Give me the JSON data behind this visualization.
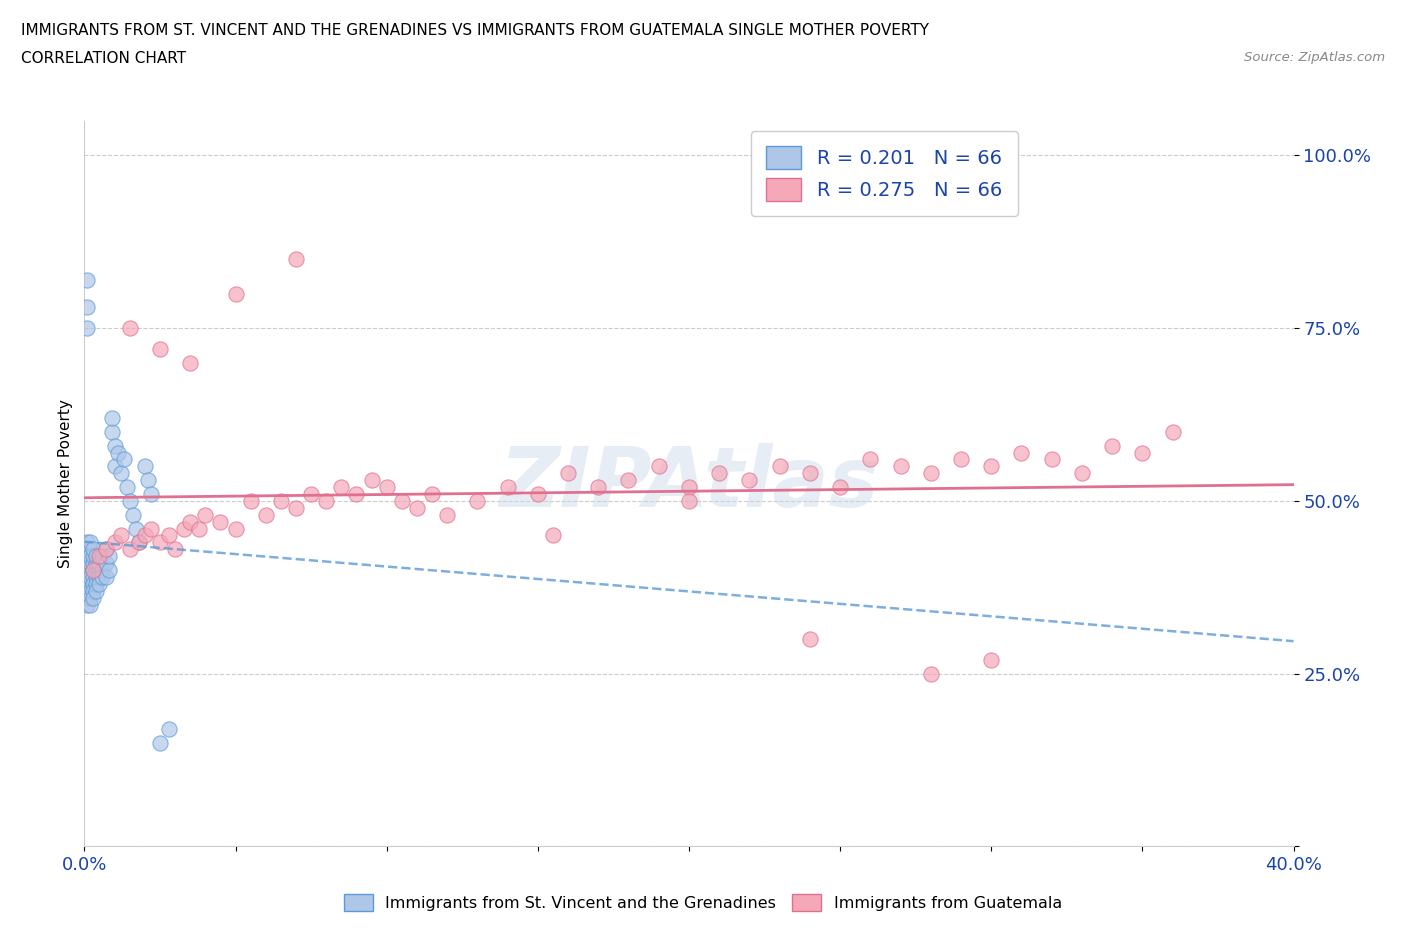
{
  "title_line1": "IMMIGRANTS FROM ST. VINCENT AND THE GRENADINES VS IMMIGRANTS FROM GUATEMALA SINGLE MOTHER POVERTY",
  "title_line2": "CORRELATION CHART",
  "source": "Source: ZipAtlas.com",
  "ylabel": "Single Mother Poverty",
  "xlim": [
    0.0,
    0.4
  ],
  "ylim": [
    0.0,
    1.05
  ],
  "xtick_positions": [
    0.0,
    0.05,
    0.1,
    0.15,
    0.2,
    0.25,
    0.3,
    0.35,
    0.4
  ],
  "xtick_labels": [
    "0.0%",
    "",
    "",
    "",
    "",
    "",
    "",
    "",
    "40.0%"
  ],
  "ytick_positions": [
    0.0,
    0.25,
    0.5,
    0.75,
    1.0
  ],
  "ytick_labels": [
    "",
    "25.0%",
    "50.0%",
    "75.0%",
    "100.0%"
  ],
  "R_blue": 0.201,
  "N_blue": 66,
  "R_pink": 0.275,
  "N_pink": 66,
  "blue_color": "#aec6e8",
  "pink_color": "#f4a8b8",
  "blue_edge": "#5b9bd5",
  "pink_edge": "#e07090",
  "trend_blue_color": "#5b9bd5",
  "trend_pink_color": "#e07090",
  "watermark": "ZIPAtlas",
  "blue_scatter_x": [
    0.001,
    0.001,
    0.001,
    0.001,
    0.001,
    0.001,
    0.001,
    0.001,
    0.001,
    0.001,
    0.002,
    0.002,
    0.002,
    0.002,
    0.002,
    0.002,
    0.002,
    0.002,
    0.002,
    0.002,
    0.003,
    0.003,
    0.003,
    0.003,
    0.003,
    0.003,
    0.003,
    0.003,
    0.004,
    0.004,
    0.004,
    0.004,
    0.004,
    0.004,
    0.005,
    0.005,
    0.005,
    0.005,
    0.006,
    0.006,
    0.006,
    0.007,
    0.007,
    0.007,
    0.008,
    0.008,
    0.009,
    0.009,
    0.01,
    0.01,
    0.011,
    0.012,
    0.013,
    0.014,
    0.015,
    0.016,
    0.017,
    0.018,
    0.02,
    0.021,
    0.022,
    0.025,
    0.028,
    0.001,
    0.001,
    0.001
  ],
  "blue_scatter_y": [
    0.4,
    0.41,
    0.42,
    0.39,
    0.38,
    0.43,
    0.37,
    0.36,
    0.35,
    0.44,
    0.4,
    0.41,
    0.38,
    0.39,
    0.37,
    0.36,
    0.43,
    0.42,
    0.35,
    0.44,
    0.4,
    0.39,
    0.41,
    0.38,
    0.37,
    0.42,
    0.36,
    0.43,
    0.4,
    0.39,
    0.41,
    0.38,
    0.42,
    0.37,
    0.4,
    0.39,
    0.41,
    0.38,
    0.4,
    0.39,
    0.42,
    0.41,
    0.39,
    0.43,
    0.4,
    0.42,
    0.6,
    0.62,
    0.58,
    0.55,
    0.57,
    0.54,
    0.56,
    0.52,
    0.5,
    0.48,
    0.46,
    0.44,
    0.55,
    0.53,
    0.51,
    0.15,
    0.17,
    0.78,
    0.82,
    0.75
  ],
  "pink_scatter_x": [
    0.003,
    0.005,
    0.007,
    0.01,
    0.012,
    0.015,
    0.018,
    0.02,
    0.022,
    0.025,
    0.028,
    0.03,
    0.033,
    0.035,
    0.038,
    0.04,
    0.045,
    0.05,
    0.055,
    0.06,
    0.065,
    0.07,
    0.075,
    0.08,
    0.085,
    0.09,
    0.095,
    0.1,
    0.105,
    0.11,
    0.115,
    0.12,
    0.13,
    0.14,
    0.15,
    0.16,
    0.17,
    0.18,
    0.19,
    0.2,
    0.21,
    0.22,
    0.23,
    0.24,
    0.25,
    0.26,
    0.27,
    0.28,
    0.29,
    0.3,
    0.31,
    0.32,
    0.33,
    0.34,
    0.35,
    0.015,
    0.025,
    0.035,
    0.05,
    0.07,
    0.28,
    0.3,
    0.36,
    0.2,
    0.155,
    0.24
  ],
  "pink_scatter_y": [
    0.4,
    0.42,
    0.43,
    0.44,
    0.45,
    0.43,
    0.44,
    0.45,
    0.46,
    0.44,
    0.45,
    0.43,
    0.46,
    0.47,
    0.46,
    0.48,
    0.47,
    0.46,
    0.5,
    0.48,
    0.5,
    0.49,
    0.51,
    0.5,
    0.52,
    0.51,
    0.53,
    0.52,
    0.5,
    0.49,
    0.51,
    0.48,
    0.5,
    0.52,
    0.51,
    0.54,
    0.52,
    0.53,
    0.55,
    0.52,
    0.54,
    0.53,
    0.55,
    0.54,
    0.52,
    0.56,
    0.55,
    0.54,
    0.56,
    0.55,
    0.57,
    0.56,
    0.54,
    0.58,
    0.57,
    0.75,
    0.72,
    0.7,
    0.8,
    0.85,
    0.25,
    0.27,
    0.6,
    0.5,
    0.45,
    0.3
  ]
}
